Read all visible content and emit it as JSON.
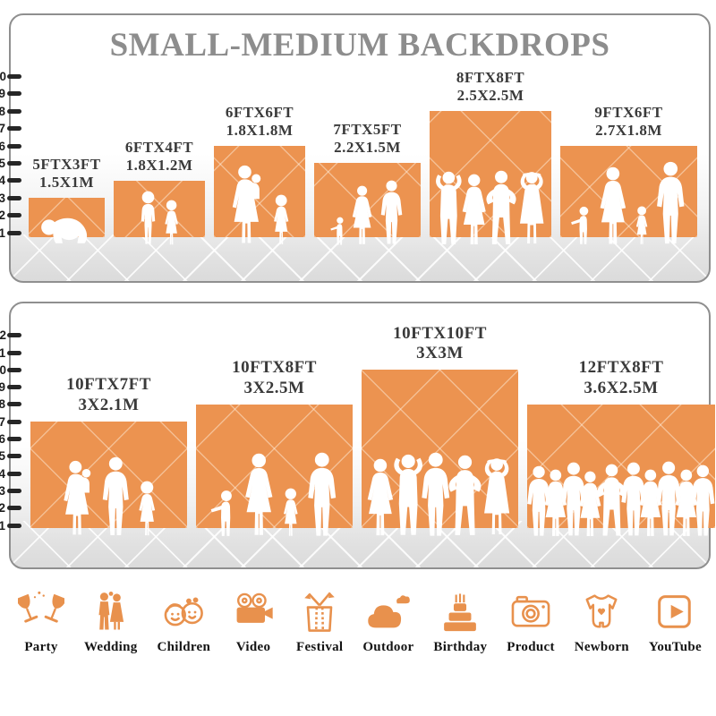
{
  "title": "SMALL-MEDIUM BACKDROPS",
  "colors": {
    "bar_orange": "#EC9350",
    "icon_orange": "#E8914D",
    "title_gray": "#8D8D8D",
    "label_dark": "#3A3A3A"
  },
  "chart_data": [
    {
      "type": "bar",
      "name": "small-medium-backdrops-top",
      "ruler_unit": "ft",
      "ruler_min": 1,
      "ruler_max": 10,
      "items": [
        {
          "size_ft": "5FTX3FT",
          "size_m": "1.5X1M",
          "width_ft": 5,
          "height_ft": 3,
          "figures": [
            {
              "type": "baby",
              "h": 1.8
            }
          ]
        },
        {
          "size_ft": "6FTX4FT",
          "size_m": "1.8X1.2M",
          "width_ft": 6,
          "height_ft": 4,
          "figures": [
            {
              "type": "child",
              "h": 3.2
            },
            {
              "type": "girl",
              "h": 2.7
            }
          ]
        },
        {
          "size_ft": "6FTX6FT",
          "size_m": "1.8X1.8M",
          "width_ft": 6,
          "height_ft": 6,
          "figures": [
            {
              "type": "woman-with-baby",
              "h": 4.7
            },
            {
              "type": "girl",
              "h": 3.0
            }
          ]
        },
        {
          "size_ft": "7FTX5FT",
          "size_m": "2.2X1.5M",
          "width_ft": 7,
          "height_ft": 5,
          "figures": [
            {
              "type": "toddler",
              "h": 1.7
            },
            {
              "type": "woman",
              "h": 3.5
            },
            {
              "type": "man",
              "h": 3.8
            }
          ]
        },
        {
          "size_ft": "8FTX8FT",
          "size_m": "2.5X2.5M",
          "width_ft": 8,
          "height_ft": 8,
          "figures": [
            {
              "type": "man-arms-up",
              "h": 4.4
            },
            {
              "type": "woman",
              "h": 4.2
            },
            {
              "type": "man-akimbo",
              "h": 4.4
            },
            {
              "type": "woman-hands-on-head",
              "h": 4.4
            }
          ]
        },
        {
          "size_ft": "9FTX6FT",
          "size_m": "2.7X1.8M",
          "width_ft": 9,
          "height_ft": 6,
          "figures": [
            {
              "type": "toddler",
              "h": 2.3
            },
            {
              "type": "woman",
              "h": 4.6
            },
            {
              "type": "girl",
              "h": 2.3
            },
            {
              "type": "man",
              "h": 4.9
            }
          ]
        }
      ]
    },
    {
      "type": "bar",
      "name": "small-medium-backdrops-bottom",
      "ruler_unit": "ft",
      "ruler_min": 1,
      "ruler_max": 12,
      "items": [
        {
          "size_ft": "10FTX7FT",
          "size_m": "3X2.1M",
          "width_ft": 10,
          "height_ft": 7,
          "figures": [
            {
              "type": "woman-with-baby",
              "h": 4.5
            },
            {
              "type": "man",
              "h": 4.7
            },
            {
              "type": "girl",
              "h": 3.3
            }
          ]
        },
        {
          "size_ft": "10FTX8FT",
          "size_m": "3X2.5M",
          "width_ft": 10,
          "height_ft": 8,
          "figures": [
            {
              "type": "toddler",
              "h": 2.8
            },
            {
              "type": "woman",
              "h": 4.9
            },
            {
              "type": "girl",
              "h": 2.9
            },
            {
              "type": "man",
              "h": 5.0
            }
          ]
        },
        {
          "size_ft": "10FTX10FT",
          "size_m": "3X3M",
          "width_ft": 10,
          "height_ft": 10,
          "figures": [
            {
              "type": "woman",
              "h": 4.6
            },
            {
              "type": "man-arms-up",
              "h": 4.9
            },
            {
              "type": "man",
              "h": 5.0
            },
            {
              "type": "man-akimbo",
              "h": 4.8
            },
            {
              "type": "woman-hands-on-head",
              "h": 4.7
            }
          ]
        },
        {
          "size_ft": "12FTX8FT",
          "size_m": "3.6X2.5M",
          "width_ft": 12,
          "height_ft": 8,
          "figures": [
            {
              "type": "man",
              "h": 4.2
            },
            {
              "type": "woman",
              "h": 4.0
            },
            {
              "type": "man",
              "h": 4.4
            },
            {
              "type": "woman",
              "h": 3.9
            },
            {
              "type": "man-akimbo",
              "h": 4.3
            },
            {
              "type": "man",
              "h": 4.4
            },
            {
              "type": "woman",
              "h": 4.0
            },
            {
              "type": "man",
              "h": 4.45
            },
            {
              "type": "woman",
              "h": 4.0
            },
            {
              "type": "man",
              "h": 4.25
            }
          ]
        }
      ]
    }
  ],
  "categories": [
    {
      "label": "Party",
      "icon": "party-icon"
    },
    {
      "label": "Wedding",
      "icon": "wedding-icon"
    },
    {
      "label": "Children",
      "icon": "children-icon"
    },
    {
      "label": "Video",
      "icon": "video-icon"
    },
    {
      "label": "Festival",
      "icon": "festival-icon"
    },
    {
      "label": "Outdoor",
      "icon": "outdoor-icon"
    },
    {
      "label": "Birthday",
      "icon": "birthday-icon"
    },
    {
      "label": "Product",
      "icon": "product-icon"
    },
    {
      "label": "Newborn",
      "icon": "newborn-icon"
    },
    {
      "label": "YouTube",
      "icon": "youtube-icon"
    }
  ]
}
